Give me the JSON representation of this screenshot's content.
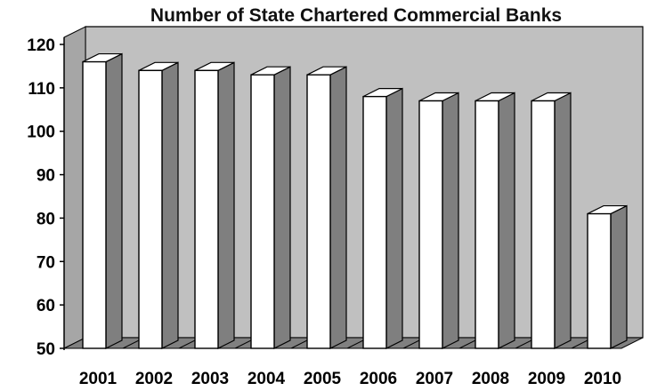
{
  "chart_data": {
    "type": "bar",
    "title": "Number of State Chartered Commercial Banks",
    "categories": [
      "2001",
      "2002",
      "2003",
      "2004",
      "2005",
      "2006",
      "2007",
      "2008",
      "2009",
      "2010"
    ],
    "values": [
      116,
      114,
      114,
      113,
      113,
      108,
      107,
      107,
      107,
      81
    ],
    "ylim": [
      50,
      120
    ],
    "yticks": [
      "50",
      "60",
      "70",
      "80",
      "90",
      "100",
      "110",
      "120"
    ],
    "style": "3d-column",
    "colors": {
      "bar_front": "#ffffff",
      "bar_side": "#7f7f7f",
      "bar_top": "#ffffff",
      "back_wall": "#c0c0c0",
      "floor": "#808080",
      "outline": "#000000"
    }
  }
}
